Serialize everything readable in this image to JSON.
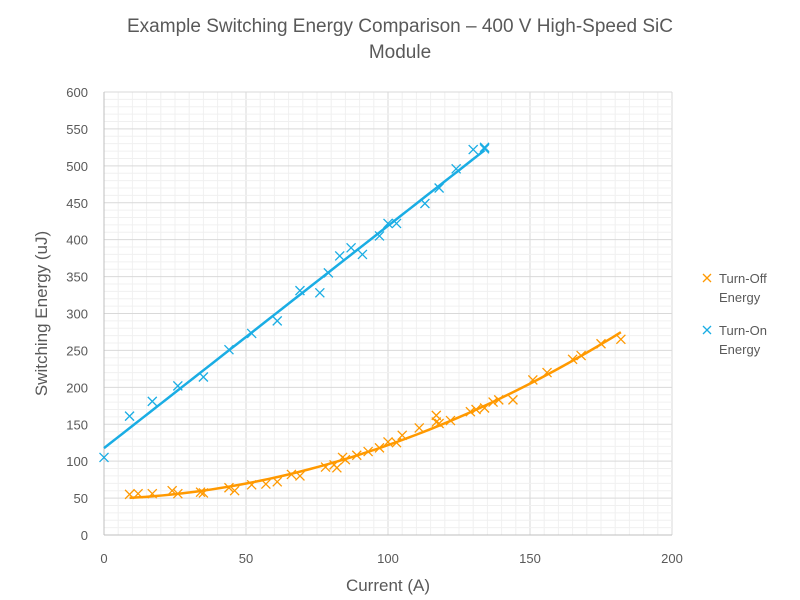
{
  "chart_data": {
    "type": "scatter",
    "title": "Example Switching Energy Comparison – 400 V High-Speed SiC Module",
    "xlabel": "Current (A)",
    "ylabel": "Switching Energy (uJ)",
    "xlim": [
      0,
      200
    ],
    "ylim": [
      0,
      600
    ],
    "xticks": [
      0,
      50,
      100,
      150,
      200
    ],
    "yticks": [
      0,
      50,
      100,
      150,
      200,
      250,
      300,
      350,
      400,
      450,
      500,
      550,
      600
    ],
    "grid": true,
    "legend_position": "right",
    "series": [
      {
        "name": "Turn-Off Energy",
        "color": "#FF9900",
        "marker": "x",
        "trendline": {
          "type": "polynomial",
          "x_range": [
            9,
            182
          ]
        },
        "points": [
          [
            9,
            55
          ],
          [
            12,
            56
          ],
          [
            17,
            56
          ],
          [
            24,
            60
          ],
          [
            26,
            56
          ],
          [
            34,
            58
          ],
          [
            35,
            57
          ],
          [
            44,
            64
          ],
          [
            46,
            60
          ],
          [
            52,
            68
          ],
          [
            57,
            69
          ],
          [
            61,
            72
          ],
          [
            66,
            82
          ],
          [
            69,
            80
          ],
          [
            78,
            92
          ],
          [
            81,
            95
          ],
          [
            82,
            91
          ],
          [
            84,
            105
          ],
          [
            85,
            102
          ],
          [
            89,
            108
          ],
          [
            93,
            113
          ],
          [
            97,
            118
          ],
          [
            100,
            126
          ],
          [
            103,
            125
          ],
          [
            105,
            135
          ],
          [
            111,
            145
          ],
          [
            117,
            162
          ],
          [
            117,
            153
          ],
          [
            118,
            151
          ],
          [
            122,
            155
          ],
          [
            129,
            167
          ],
          [
            131,
            170
          ],
          [
            134,
            172
          ],
          [
            137,
            180
          ],
          [
            139,
            183
          ],
          [
            144,
            183
          ],
          [
            151,
            210
          ],
          [
            156,
            220
          ],
          [
            165,
            238
          ],
          [
            168,
            243
          ],
          [
            175,
            259
          ],
          [
            182,
            265
          ]
        ]
      },
      {
        "name": "Turn-On Energy",
        "color": "#1AADE4",
        "marker": "x",
        "trendline": {
          "type": "linear",
          "x_range": [
            0,
            134
          ]
        },
        "points": [
          [
            0,
            105
          ],
          [
            9,
            161
          ],
          [
            17,
            181
          ],
          [
            26,
            202
          ],
          [
            35,
            214
          ],
          [
            44,
            251
          ],
          [
            52,
            273
          ],
          [
            61,
            290
          ],
          [
            69,
            331
          ],
          [
            76,
            328
          ],
          [
            79,
            355
          ],
          [
            83,
            378
          ],
          [
            87,
            389
          ],
          [
            91,
            380
          ],
          [
            97,
            405
          ],
          [
            100,
            422
          ],
          [
            103,
            422
          ],
          [
            113,
            449
          ],
          [
            118,
            470
          ],
          [
            124,
            496
          ],
          [
            130,
            522
          ],
          [
            134,
            525
          ],
          [
            134,
            523
          ]
        ]
      }
    ]
  }
}
